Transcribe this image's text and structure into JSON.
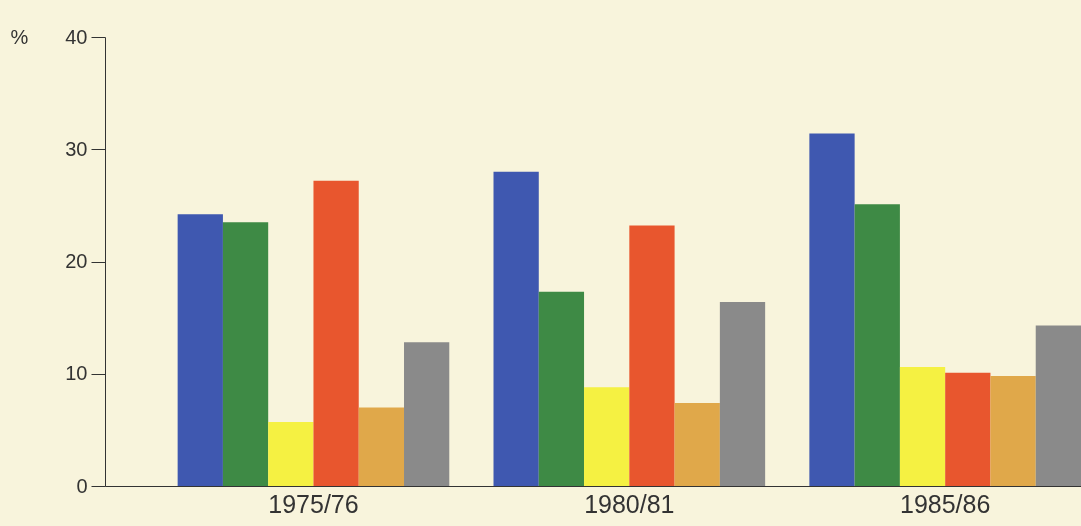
{
  "chart_data": {
    "type": "bar",
    "ylabel": "%",
    "categories": [
      "1975/76",
      "1980/81",
      "1985/86"
    ],
    "series": [
      {
        "color": "#3f58b0",
        "values": [
          24.2,
          28.0,
          31.4
        ]
      },
      {
        "color": "#3e8a45",
        "values": [
          23.5,
          17.3,
          25.1
        ]
      },
      {
        "color": "#f5f142",
        "values": [
          5.7,
          8.8,
          10.6
        ]
      },
      {
        "color": "#e8562e",
        "values": [
          27.2,
          23.2,
          10.1
        ]
      },
      {
        "color": "#e0a84a",
        "values": [
          7.0,
          7.4,
          9.8
        ]
      },
      {
        "color": "#8a8a8a",
        "values": [
          12.8,
          16.4,
          14.3
        ]
      }
    ],
    "ylim": [
      0,
      40
    ],
    "yticks": [
      0,
      10,
      20,
      30,
      40
    ],
    "grid": false,
    "legend": false
  }
}
